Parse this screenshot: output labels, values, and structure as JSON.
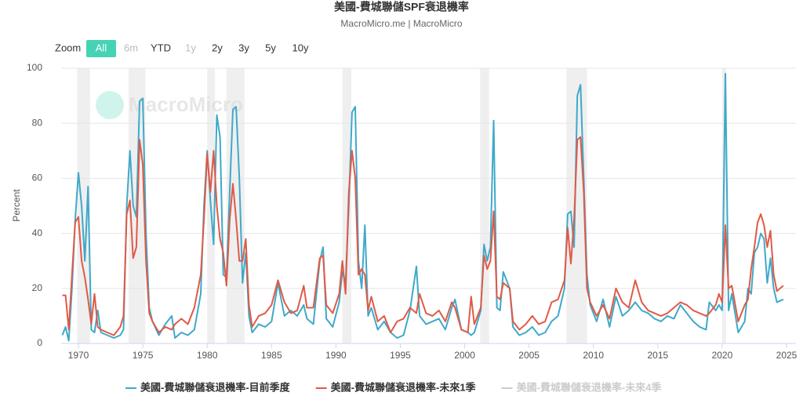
{
  "chart_data": {
    "type": "line",
    "title": "美國-費城聯儲SPF衰退機率",
    "subtitle": "MacroMicro.me | MacroMicro",
    "watermark": "MacroMicro",
    "y_label": "Percent",
    "zoom_label": "Zoom",
    "zoom_buttons": [
      "All",
      "6m",
      "YTD",
      "1y",
      "2y",
      "3y",
      "5y",
      "10y"
    ],
    "zoom_active": 0,
    "zoom_disabled": [
      1,
      3
    ],
    "xlim": [
      1968.66,
      2025.73
    ],
    "xticks": [
      1970,
      1975,
      1980,
      1985,
      1990,
      1995,
      2000,
      2005,
      2010,
      2015,
      2020,
      2025
    ],
    "ylim": [
      0,
      100
    ],
    "yticks": [
      0,
      20,
      40,
      60,
      80,
      100
    ],
    "grid": true,
    "recessions": [
      [
        1969.9,
        1970.9
      ],
      [
        1973.9,
        1975.2
      ],
      [
        1980.0,
        1980.6
      ],
      [
        1981.5,
        1982.9
      ],
      [
        1990.5,
        1991.2
      ],
      [
        2001.2,
        2001.9
      ],
      [
        2007.9,
        2009.5
      ],
      [
        2020.0,
        2020.3
      ]
    ],
    "x": [
      1968.75,
      1969.0,
      1969.25,
      1969.5,
      1969.75,
      1970.0,
      1970.25,
      1970.5,
      1970.75,
      1971.0,
      1971.25,
      1971.5,
      1971.75,
      1972.25,
      1972.75,
      1973.25,
      1973.5,
      1973.75,
      1974.0,
      1974.25,
      1974.5,
      1974.75,
      1975.0,
      1975.25,
      1975.5,
      1975.75,
      1976.25,
      1976.75,
      1977.25,
      1977.5,
      1978.0,
      1978.5,
      1979.0,
      1979.5,
      1979.75,
      1980.0,
      1980.25,
      1980.5,
      1980.75,
      1981.0,
      1981.25,
      1981.5,
      1981.75,
      1982.0,
      1982.25,
      1982.5,
      1982.75,
      1983.0,
      1983.25,
      1983.5,
      1984.0,
      1984.5,
      1985.0,
      1985.5,
      1986.0,
      1986.5,
      1987.0,
      1987.5,
      1987.75,
      1988.25,
      1988.75,
      1989.0,
      1989.25,
      1989.75,
      1990.25,
      1990.5,
      1990.75,
      1991.0,
      1991.25,
      1991.5,
      1991.75,
      1992.0,
      1992.25,
      1992.5,
      1992.75,
      1993.25,
      1993.75,
      1994.25,
      1994.75,
      1995.25,
      1995.75,
      1996.25,
      1996.5,
      1997.0,
      1997.5,
      1998.0,
      1998.5,
      1999.0,
      1999.25,
      1999.75,
      2000.25,
      2000.5,
      2000.75,
      2001.25,
      2001.5,
      2001.75,
      2002.0,
      2002.25,
      2002.5,
      2002.75,
      2003.0,
      2003.5,
      2003.75,
      2004.25,
      2004.75,
      2005.25,
      2005.75,
      2006.25,
      2006.75,
      2007.25,
      2007.75,
      2008.0,
      2008.25,
      2008.5,
      2008.75,
      2009.0,
      2009.25,
      2009.5,
      2009.75,
      2010.25,
      2010.75,
      2011.25,
      2011.75,
      2012.25,
      2012.75,
      2013.25,
      2013.75,
      2014.25,
      2014.75,
      2015.25,
      2015.75,
      2016.25,
      2016.75,
      2017.25,
      2017.75,
      2018.25,
      2018.75,
      2019.0,
      2019.5,
      2019.75,
      2020.0,
      2020.25,
      2020.5,
      2020.75,
      2021.25,
      2021.75,
      2022.0,
      2022.25,
      2022.5,
      2022.75,
      2023.0,
      2023.25,
      2023.5,
      2023.75,
      2024.0,
      2024.25,
      2024.75
    ],
    "series": [
      {
        "name": "美國-費城聯儲衰退機率-目前季度",
        "color": "#3fa9c9",
        "values": [
          3,
          6,
          1,
          20,
          45,
          62,
          50,
          30,
          57,
          5,
          4,
          12,
          4,
          3,
          2,
          3,
          5,
          50,
          70,
          50,
          46,
          88,
          89,
          40,
          13,
          8,
          3,
          7,
          10,
          2,
          4,
          3,
          5,
          18,
          50,
          70,
          52,
          36,
          83,
          75,
          25,
          24,
          55,
          85,
          86,
          60,
          22,
          33,
          10,
          4,
          7,
          6,
          8,
          22,
          10,
          12,
          10,
          14,
          9,
          7,
          30,
          35,
          9,
          6,
          15,
          26,
          22,
          50,
          84,
          86,
          30,
          20,
          43,
          10,
          13,
          5,
          8,
          4,
          2,
          3,
          12,
          28,
          10,
          7,
          8,
          9,
          5,
          13,
          16,
          5,
          4,
          3,
          4,
          12,
          36,
          30,
          35,
          81,
          13,
          12,
          26,
          20,
          6,
          3,
          4,
          6,
          3,
          4,
          8,
          10,
          20,
          47,
          48,
          35,
          90,
          94,
          60,
          25,
          14,
          8,
          16,
          6,
          17,
          10,
          12,
          15,
          12,
          11,
          9,
          8,
          10,
          9,
          14,
          11,
          8,
          6,
          5,
          15,
          12,
          14,
          12,
          98,
          12,
          18,
          4,
          8,
          20,
          18,
          33,
          35,
          40,
          38,
          22,
          31,
          20,
          15,
          16
        ]
      },
      {
        "name": "美國-費城聯儲衰退機率-未來1季",
        "color": "#e05a47",
        "values": [
          17.5,
          17.5,
          5,
          25,
          44,
          46,
          30,
          24,
          16,
          7,
          18,
          6,
          5,
          4,
          3,
          6,
          10,
          47,
          52,
          31,
          35,
          74,
          65,
          30,
          11,
          8,
          4,
          6,
          5,
          7,
          9,
          7,
          13,
          25,
          45,
          69,
          55,
          70,
          50,
          38,
          33,
          21,
          45,
          58,
          45,
          30,
          30,
          38,
          14,
          6,
          10,
          11,
          14,
          23,
          15,
          11,
          12,
          21,
          13,
          13,
          31,
          32,
          14,
          11,
          18,
          30,
          18,
          55,
          70,
          60,
          25,
          27,
          25,
          12,
          17,
          8,
          10,
          4,
          8,
          9,
          13,
          11,
          18,
          11,
          10,
          12,
          8,
          15,
          13,
          5,
          4,
          17,
          7,
          13,
          32,
          27,
          30,
          48,
          17,
          16,
          22,
          20,
          8,
          5,
          7,
          10,
          7,
          8,
          15,
          16,
          23,
          42,
          29,
          45,
          74,
          75,
          55,
          20,
          15,
          10,
          14,
          9,
          20,
          15,
          13,
          23,
          15,
          12,
          11,
          10,
          11,
          13,
          15,
          14,
          12,
          11,
          10,
          11,
          14,
          18,
          15,
          43,
          20,
          21,
          8,
          14,
          16,
          27,
          35,
          44,
          47,
          43,
          35,
          41,
          25,
          19,
          21
        ]
      }
    ],
    "hidden_series": [
      {
        "name": "美國-費城聯儲衰退機率-未來4季",
        "color": "#cccccc"
      }
    ]
  }
}
